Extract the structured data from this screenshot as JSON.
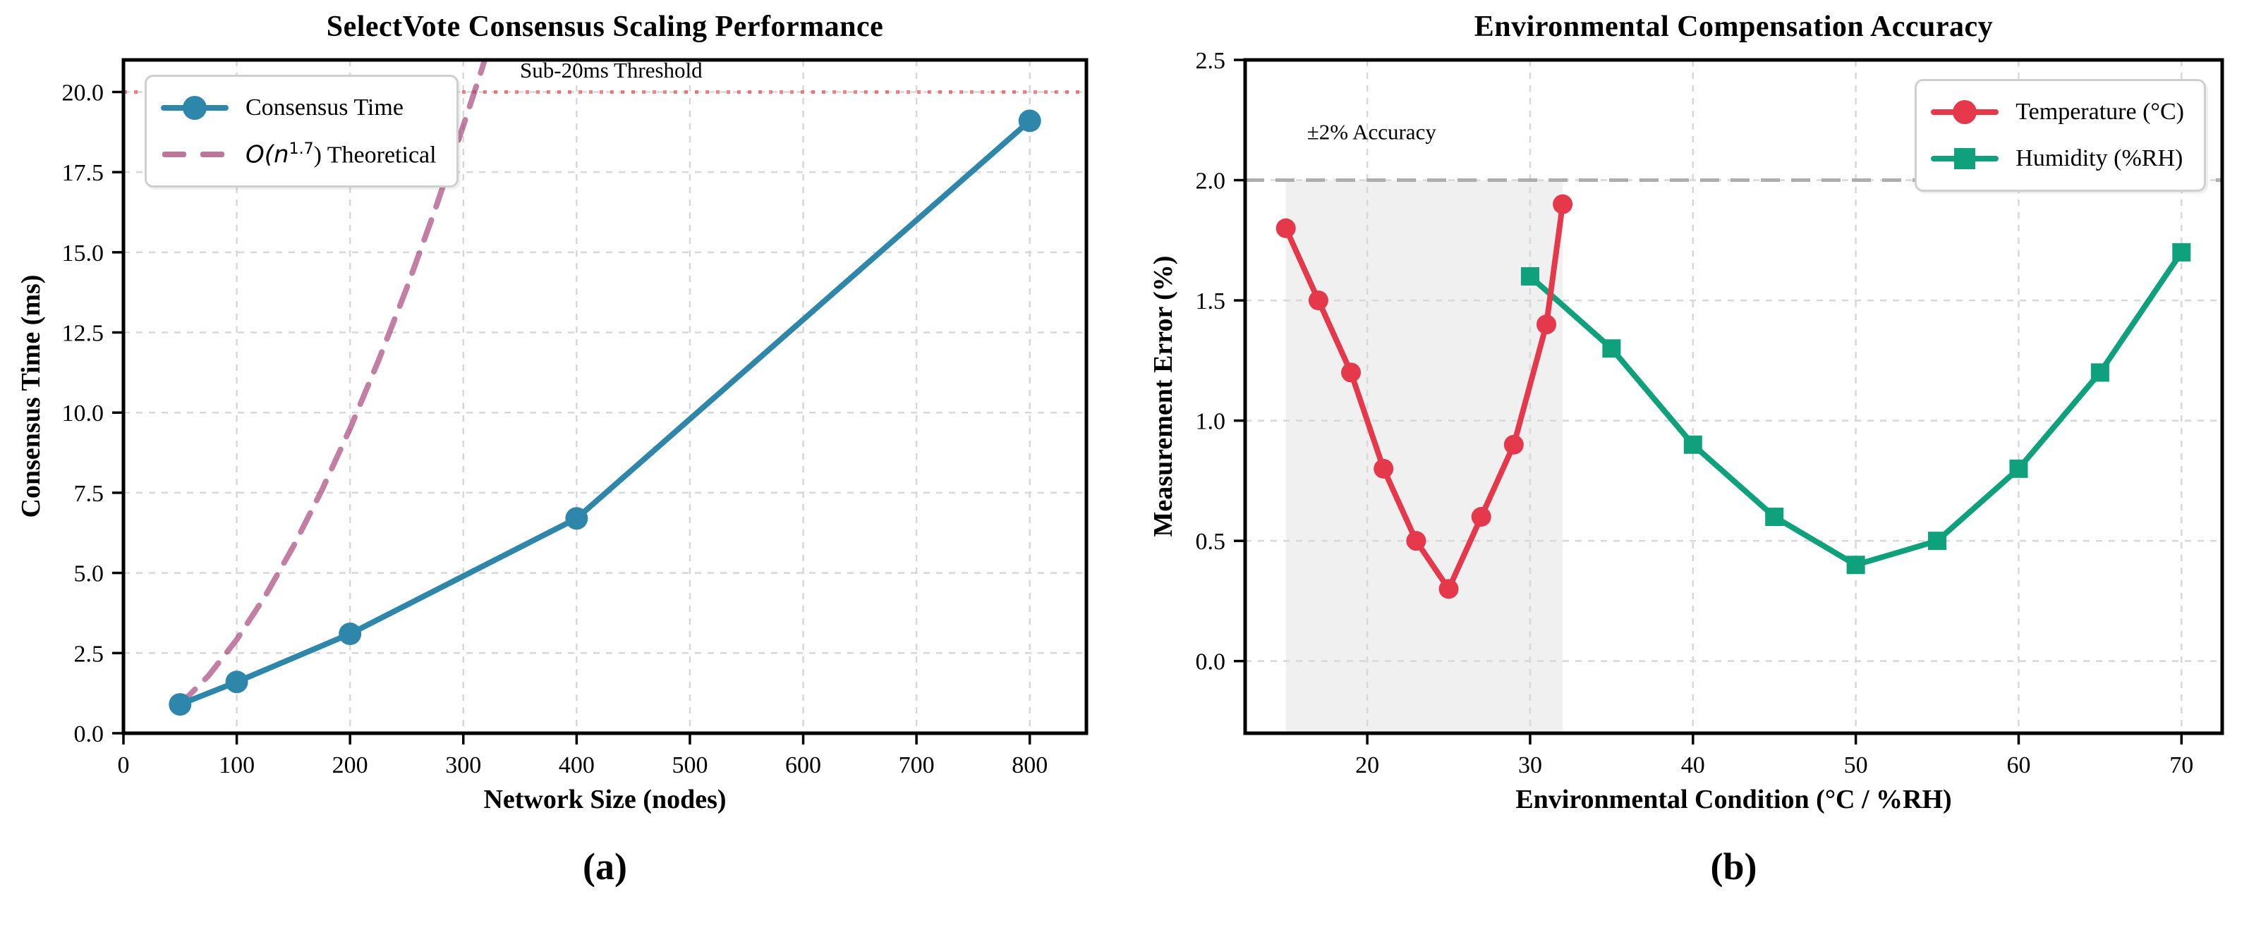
{
  "figure": {
    "background": "#ffffff"
  },
  "chart_data": [
    {
      "type": "line",
      "panel_label": "(a)",
      "title": "SelectVote Consensus Scaling Performance",
      "xlabel": "Network Size (nodes)",
      "ylabel": "Consensus Time (ms)",
      "xlim": [
        0,
        850
      ],
      "ylim": [
        0,
        21
      ],
      "grid": true,
      "legend_position": "upper-left",
      "xticks": {
        "values": [
          0,
          100,
          200,
          300,
          400,
          500,
          600,
          700,
          800
        ],
        "labels": [
          "0",
          "100",
          "200",
          "300",
          "400",
          "500",
          "600",
          "700",
          "800"
        ]
      },
      "yticks": {
        "values": [
          0,
          2.5,
          5,
          7.5,
          10,
          12.5,
          15,
          17.5,
          20
        ],
        "labels": [
          "0.0",
          "2.5",
          "5.0",
          "7.5",
          "10.0",
          "12.5",
          "15.0",
          "17.5",
          "20.0"
        ]
      },
      "series": [
        {
          "name": "consensus-time",
          "label": "Consensus Time",
          "color": "#2E86AB",
          "marker": "circle",
          "marker_size": 16,
          "line": "solid",
          "zorder": 3,
          "x": [
            50,
            100,
            200,
            400,
            800
          ],
          "y": [
            0.9,
            1.6,
            3.1,
            6.7,
            19.1
          ]
        },
        {
          "name": "theoretical",
          "label": "O(n^1.7) Theoretical",
          "label_parts": {
            "pre": "O(n",
            "sup": "1.7",
            "post": ") Theoretical"
          },
          "color": "#A23B72",
          "opacity": 0.65,
          "marker": "none",
          "line": "dashed",
          "zorder": 2,
          "x": [
            50,
            75,
            100,
            125,
            150,
            175,
            200,
            225,
            250,
            275,
            300,
            315,
            325
          ],
          "y": [
            0.9,
            1.79,
            2.92,
            4.27,
            5.83,
            7.57,
            9.5,
            11.61,
            13.88,
            16.32,
            18.95,
            20.56,
            21.69
          ]
        }
      ],
      "reference_lines": [
        {
          "name": "sub-20ms-threshold",
          "y": 20,
          "style": "dotted",
          "color": "#ED1C24",
          "opacity": 0.55,
          "label": "Sub-20ms Threshold",
          "label_color": "#ED1C24",
          "label_x": 350,
          "label_y": 20.45
        }
      ]
    },
    {
      "type": "line",
      "panel_label": "(b)",
      "title": "Environmental Compensation Accuracy",
      "xlabel": "Environmental Condition (°C / %RH)",
      "ylabel": "Measurement Error (%)",
      "xlim": [
        12.5,
        72.5
      ],
      "ylim": [
        -0.3,
        2.5
      ],
      "grid": true,
      "legend_position": "upper-right",
      "xticks": {
        "values": [
          20,
          30,
          40,
          50,
          60,
          70
        ],
        "labels": [
          "20",
          "30",
          "40",
          "50",
          "60",
          "70"
        ]
      },
      "yticks": {
        "values": [
          0,
          0.5,
          1,
          1.5,
          2,
          2.5
        ],
        "labels": [
          "0.0",
          "0.5",
          "1.0",
          "1.5",
          "2.0",
          "2.5"
        ]
      },
      "shaded_region": {
        "x0": 15,
        "x1": 32,
        "y0": -0.3,
        "y1": 2.0,
        "fill": "#c8c8c8",
        "opacity": 0.28
      },
      "series": [
        {
          "name": "temperature",
          "label": "Temperature (°C)",
          "color": "#E5394B",
          "marker": "circle",
          "marker_size": 14,
          "line": "solid",
          "zorder": 3,
          "x": [
            15,
            17,
            19,
            21,
            23,
            25,
            27,
            29,
            31,
            32
          ],
          "y": [
            1.8,
            1.5,
            1.2,
            0.8,
            0.5,
            0.3,
            0.6,
            0.9,
            1.4,
            1.9
          ]
        },
        {
          "name": "humidity",
          "label": "Humidity (%RH)",
          "color": "#0FA07C",
          "marker": "square",
          "marker_size": 26,
          "line": "solid",
          "zorder": 2,
          "x": [
            30,
            35,
            40,
            45,
            50,
            55,
            60,
            65,
            70
          ],
          "y": [
            1.6,
            1.3,
            0.9,
            0.6,
            0.4,
            0.5,
            0.8,
            1.2,
            1.7
          ]
        }
      ],
      "reference_lines": [
        {
          "name": "accuracy-limit",
          "y": 2.0,
          "style": "dashed",
          "color": "#ababab",
          "opacity": 0.95,
          "label": "±2% Accuracy",
          "label_color": "#8f8f8f",
          "label_x": 16.3,
          "label_y": 2.17
        }
      ]
    }
  ]
}
